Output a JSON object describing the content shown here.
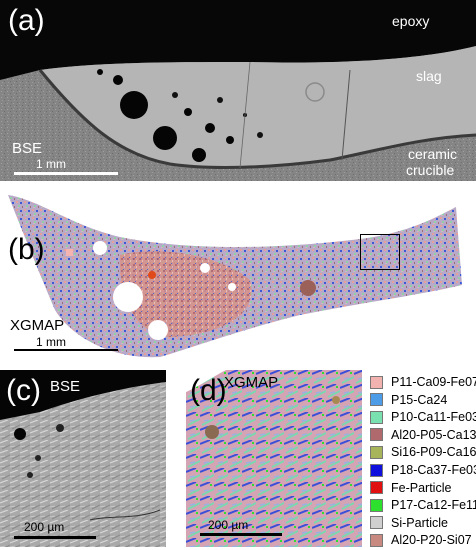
{
  "panel_a": {
    "label": "(a)",
    "epoxy": "epoxy",
    "slag": "slag",
    "bse": "BSE",
    "scale": "1 mm",
    "crucible_1": "ceramic",
    "crucible_2": "crucible"
  },
  "panel_b": {
    "label": "(b)",
    "xgmap": "XGMAP",
    "scale": "1 mm"
  },
  "panel_c": {
    "label": "(c)",
    "bse": "BSE",
    "scale": "200 µm"
  },
  "panel_d": {
    "label": "(d)",
    "xgmap": "XGMAP",
    "scale": "200 µm"
  },
  "legend": [
    {
      "label": "P11-Ca09-Fe07",
      "color": "#f2b3b0"
    },
    {
      "label": "P15-Ca24",
      "color": "#4c9ce8"
    },
    {
      "label": "P10-Ca11-Fe03",
      "color": "#79e0b0"
    },
    {
      "label": "Al20-P05-Ca13",
      "color": "#b06a6e"
    },
    {
      "label": "Si16-P09-Ca16",
      "color": "#a8b45a"
    },
    {
      "label": "P18-Ca37-Fe03",
      "color": "#1010dd"
    },
    {
      "label": "Fe-Particle",
      "color": "#e01010"
    },
    {
      "label": "P17-Ca12-Fe11",
      "color": "#2ee02e"
    },
    {
      "label": "Si-Particle",
      "color": "#cfcfcf"
    },
    {
      "label": "Al20-P20-Si07",
      "color": "#c88a80"
    }
  ]
}
